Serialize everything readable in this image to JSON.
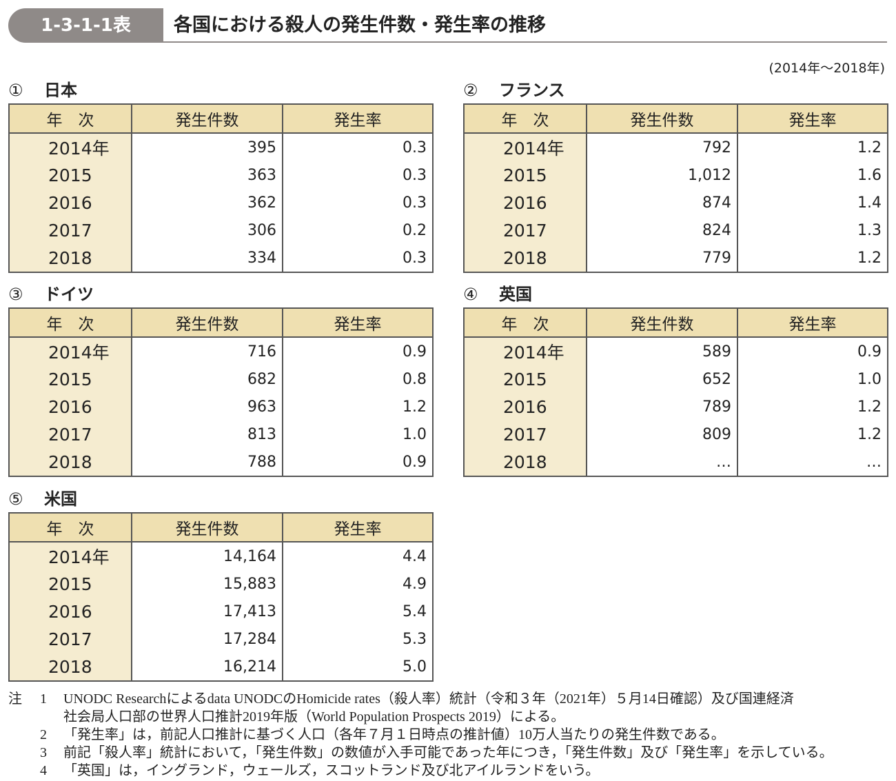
{
  "header": {
    "label": "1-3-1-1表",
    "title": "各国における殺人の発生件数・発生率の推移"
  },
  "period": "(2014年～2018年)",
  "tables": [
    {
      "number": "①",
      "name": "日本",
      "columns": [
        "年　次",
        "発生件数",
        "発生率"
      ],
      "rows": [
        [
          "2014年",
          "395",
          "0.3"
        ],
        [
          "2015",
          "363",
          "0.3"
        ],
        [
          "2016",
          "362",
          "0.3"
        ],
        [
          "2017",
          "306",
          "0.2"
        ],
        [
          "2018",
          "334",
          "0.3"
        ]
      ]
    },
    {
      "number": "②",
      "name": "フランス",
      "columns": [
        "年　次",
        "発生件数",
        "発生率"
      ],
      "rows": [
        [
          "2014年",
          "792",
          "1.2"
        ],
        [
          "2015",
          "1,012",
          "1.6"
        ],
        [
          "2016",
          "874",
          "1.4"
        ],
        [
          "2017",
          "824",
          "1.3"
        ],
        [
          "2018",
          "779",
          "1.2"
        ]
      ]
    },
    {
      "number": "③",
      "name": "ドイツ",
      "columns": [
        "年　次",
        "発生件数",
        "発生率"
      ],
      "rows": [
        [
          "2014年",
          "716",
          "0.9"
        ],
        [
          "2015",
          "682",
          "0.8"
        ],
        [
          "2016",
          "963",
          "1.2"
        ],
        [
          "2017",
          "813",
          "1.0"
        ],
        [
          "2018",
          "788",
          "0.9"
        ]
      ]
    },
    {
      "number": "④",
      "name": "英国",
      "columns": [
        "年　次",
        "発生件数",
        "発生率"
      ],
      "rows": [
        [
          "2014年",
          "589",
          "0.9"
        ],
        [
          "2015",
          "652",
          "1.0"
        ],
        [
          "2016",
          "789",
          "1.2"
        ],
        [
          "2017",
          "809",
          "1.2"
        ],
        [
          "2018",
          "…",
          "…"
        ]
      ]
    },
    {
      "number": "⑤",
      "name": "米国",
      "columns": [
        "年　次",
        "発生件数",
        "発生率"
      ],
      "rows": [
        [
          "2014年",
          "14,164",
          "4.4"
        ],
        [
          "2015",
          "15,883",
          "4.9"
        ],
        [
          "2016",
          "17,413",
          "5.4"
        ],
        [
          "2017",
          "17,284",
          "5.3"
        ],
        [
          "2018",
          "16,214",
          "5.0"
        ]
      ]
    }
  ],
  "notes": {
    "label": "注",
    "items": [
      {
        "number": "1",
        "lines": [
          "UNODC Researchによるdata UNODCのHomicide rates（殺人率）統計（令和３年（2021年）５月14日確認）及び国連経済",
          "社会局人口部の世界人口推計2019年版（World Population Prospects 2019）による。"
        ]
      },
      {
        "number": "2",
        "lines": [
          "「発生率」は，前記人口推計に基づく人口（各年７月１日時点の推計値）10万人当たりの発生件数である。"
        ]
      },
      {
        "number": "3",
        "lines": [
          "前記「殺人率」統計において，「発生件数」の数値が入手可能であった年につき，「発生件数」及び「発生率」を示している。"
        ]
      },
      {
        "number": "4",
        "lines": [
          "「英国」は，イングランド，ウェールズ，スコットランド及び北アイルランドをいう。"
        ]
      }
    ]
  }
}
